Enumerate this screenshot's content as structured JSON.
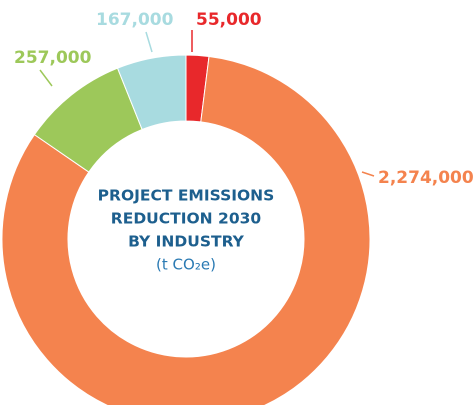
{
  "chart_data": {
    "type": "donut",
    "title": [
      "PROJECT EMISSIONS",
      "REDUCTION 2030",
      "BY INDUSTRY"
    ],
    "unit": "(t CO₂e)",
    "values": [
      55000,
      2274000,
      257000,
      167000
    ],
    "value_labels": [
      "55,000",
      "2,274,000",
      "257,000",
      "167,000"
    ],
    "colors": [
      "#e8282b",
      "#f4834e",
      "#9dc85a",
      "#a8dbe0"
    ]
  }
}
